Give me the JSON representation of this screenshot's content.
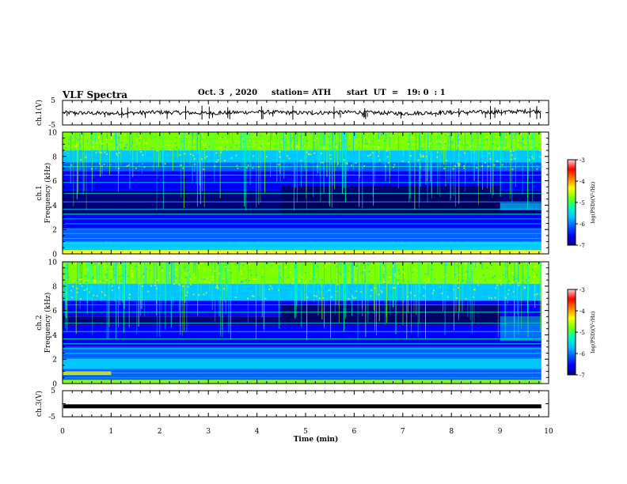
{
  "header": {
    "title": "VLF Spectra",
    "date": "Oct. 3  , 2020",
    "station": "station= ATH",
    "start": "start  UT  =   19: 0  : 1"
  },
  "colors": {
    "colormap": [
      "#00007a",
      "#0000ff",
      "#0060ff",
      "#00c8ff",
      "#00ffb4",
      "#7cff00",
      "#ffff00",
      "#ff8000",
      "#ff0000",
      "#ffd0d0"
    ],
    "trace": "#000000"
  },
  "chart_data": [
    {
      "type": "line",
      "panel": "ch.1 waveform",
      "ylabel": "ch.1(V)",
      "ylim": [
        -5,
        5
      ],
      "y_ticklabels": [
        "5",
        "-5"
      ],
      "series": [
        {
          "x": [
            0,
            1,
            2,
            3,
            4,
            5,
            6,
            7,
            8,
            9,
            9.85
          ],
          "y": [
            0,
            -0.3,
            0.2,
            -0.2,
            0.3,
            -0.1,
            0.2,
            -0.3,
            0.1,
            0.3,
            0.7
          ]
        }
      ]
    },
    {
      "type": "heatmap",
      "panel": "ch.1 spectrogram",
      "ylabel": "ch.1\nFrequency (kHz)",
      "xlim": [
        0,
        10
      ],
      "ylim": [
        0,
        10
      ],
      "y_ticks": [
        0,
        2,
        4,
        6,
        8,
        10
      ],
      "colorbar": {
        "label": "log(PSD)(V²/Hz)",
        "ticks": [
          -3,
          -4,
          -5,
          -6,
          -7
        ]
      },
      "data_end_min": 9.85
    },
    {
      "type": "heatmap",
      "panel": "ch.2 spectrogram",
      "ylabel": "ch.2\nFrequency (kHz)",
      "xlim": [
        0,
        10
      ],
      "ylim": [
        0,
        10
      ],
      "y_ticks": [
        0,
        2,
        4,
        6,
        8,
        10
      ],
      "colorbar": {
        "label": "log(PSD)(V²/Hz)",
        "ticks": [
          -3,
          -4,
          -5,
          -6,
          -7
        ]
      },
      "data_end_min": 9.85
    },
    {
      "type": "line",
      "panel": "ch.3 waveform",
      "ylabel": "ch.3(V)",
      "ylim": [
        -5,
        5
      ],
      "y_ticklabels": [
        "5",
        "-5"
      ],
      "series": [
        {
          "x": [
            0,
            9.85
          ],
          "y": [
            -1,
            -1
          ]
        }
      ]
    }
  ],
  "xaxis": {
    "label": "Time  (min)",
    "ticks": [
      "0",
      "1",
      "2",
      "3",
      "4",
      "5",
      "6",
      "7",
      "8",
      "9",
      "10"
    ]
  }
}
